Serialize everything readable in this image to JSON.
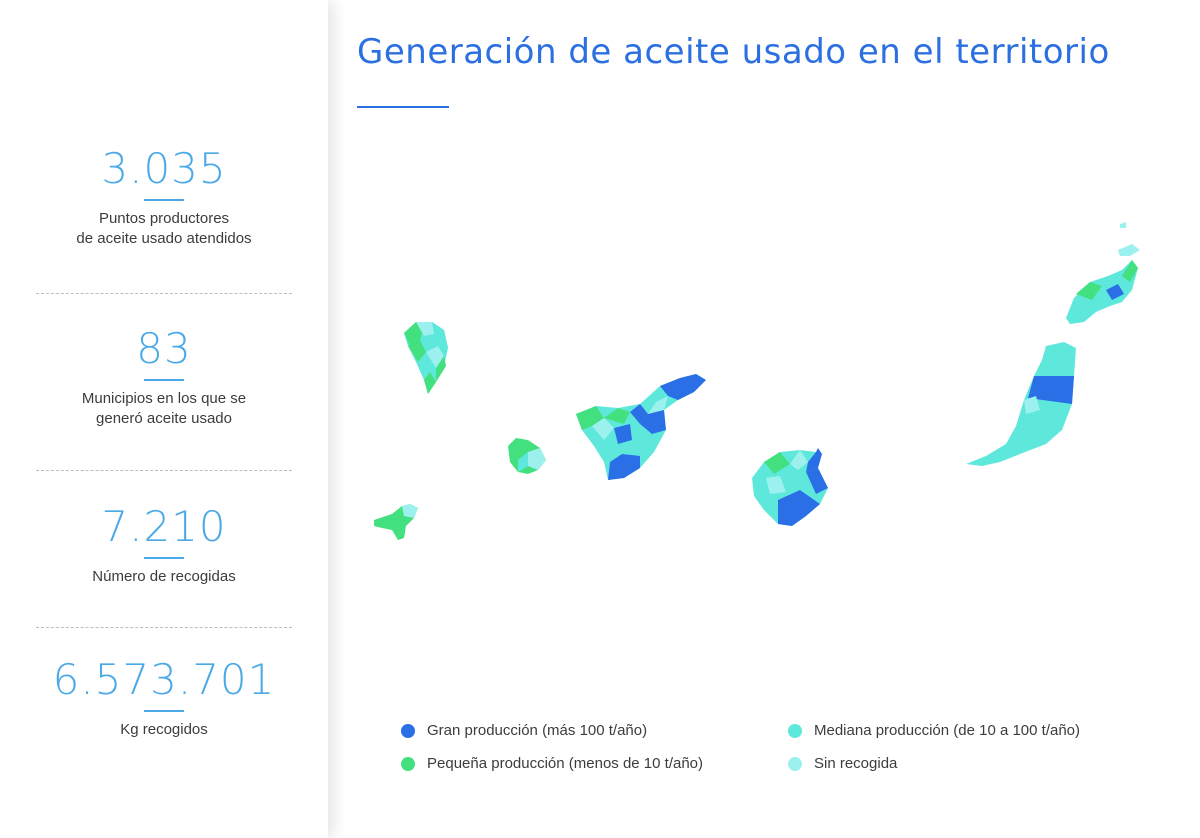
{
  "title": "Generación de aceite usado en el territorio",
  "stats": [
    {
      "value": "3.035",
      "label_line1": "Puntos productores",
      "label_line2": "de aceite usado atendidos"
    },
    {
      "value": "83",
      "label_line1": "Municipios en los que se",
      "label_line2": "generó aceite usado"
    },
    {
      "value": "7.210",
      "label_line1": "Número de recogidas",
      "label_line2": ""
    },
    {
      "value": "6.573.701",
      "label_line1": "Kg recogidos",
      "label_line2": ""
    }
  ],
  "legend": {
    "gran": {
      "label": "Gran producción (más 100 t/año)",
      "color": "#2a6fe6"
    },
    "pequena": {
      "label": "Pequeña producción (menos de 10 t/año)",
      "color": "#43e07f"
    },
    "mediana": {
      "label": "Mediana producción (de 10 a 100 t/año)",
      "color": "#5ee8dc"
    },
    "sin": {
      "label": "Sin recogida",
      "color": "#9cf1ee"
    }
  },
  "colors": {
    "accent": "#4aa9e6",
    "title": "#2b6fe0"
  }
}
